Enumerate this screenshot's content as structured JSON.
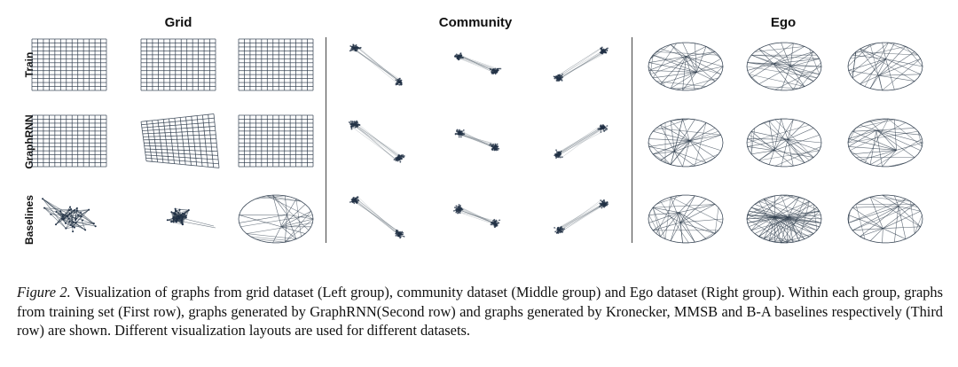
{
  "figure": {
    "groups": [
      {
        "key": "grid",
        "title": "Grid",
        "style": "grid"
      },
      {
        "key": "community",
        "title": "Community",
        "style": "community"
      },
      {
        "key": "ego",
        "title": "Ego",
        "style": "ego"
      }
    ],
    "rows": [
      {
        "key": "train",
        "label": "Train"
      },
      {
        "key": "graphrnn",
        "label": "GraphRNN"
      },
      {
        "key": "baselines",
        "label": "Baselines"
      }
    ]
  },
  "caption": {
    "label": "Figure 2.",
    "text": "Visualization of graphs from grid dataset (Left group), community dataset (Middle group) and Ego dataset (Right group). Within each group, graphs from training set (First row), graphs generated by GraphRNN(Second row) and graphs generated by Kronecker, MMSB and B-A baselines respectively (Third row) are shown. Different visualization layouts are used for different datasets."
  },
  "colors": {
    "edge": "#2b3a4a",
    "node": "#1f2f45",
    "separator": "#444444"
  }
}
